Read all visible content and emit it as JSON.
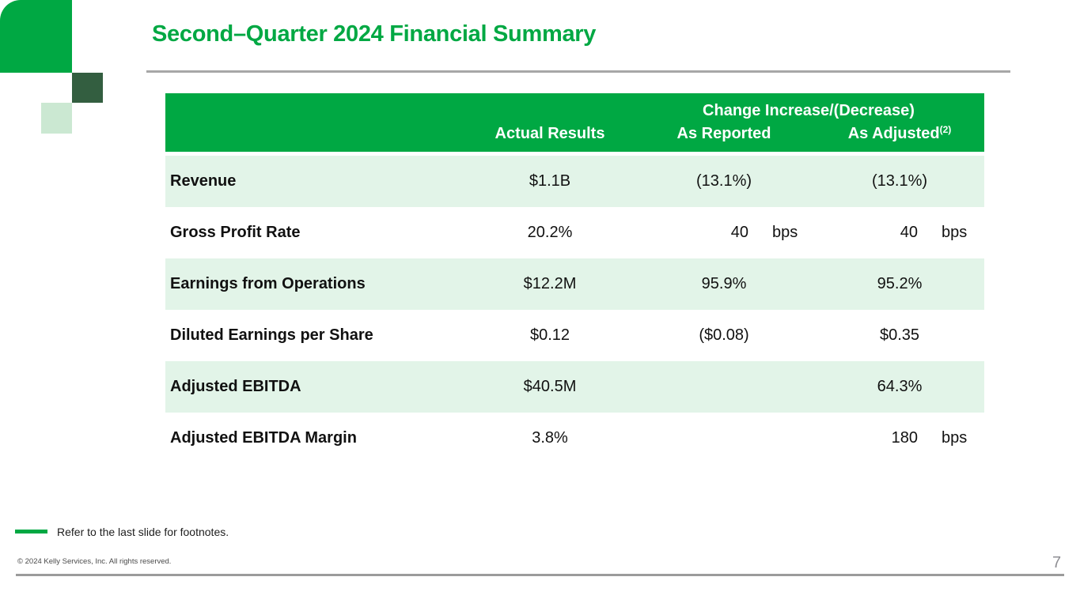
{
  "title": "Second–Quarter 2024 Financial Summary",
  "table": {
    "header": {
      "change_group": "Change Increase/(Decrease)",
      "col_actual": "Actual Results",
      "col_reported": "As Reported",
      "col_adjusted": "As Adjusted",
      "col_adjusted_sup": "(2)"
    },
    "rows": [
      {
        "label": "Revenue",
        "actual": "$1.1B",
        "reported": {
          "value": "(13.1%)",
          "unit": ""
        },
        "adjusted": {
          "value": "(13.1%)",
          "unit": ""
        }
      },
      {
        "label": "Gross Profit Rate",
        "actual": "20.2%",
        "reported": {
          "value": "40",
          "unit": "bps"
        },
        "adjusted": {
          "value": "40",
          "unit": "bps"
        }
      },
      {
        "label": "Earnings from Operations",
        "actual": "$12.2M",
        "reported": {
          "value": "95.9%",
          "unit": ""
        },
        "adjusted": {
          "value": "95.2%",
          "unit": ""
        }
      },
      {
        "label": "Diluted Earnings per Share",
        "actual": "$0.12",
        "reported": {
          "value": "($0.08)",
          "unit": ""
        },
        "adjusted": {
          "value": "$0.35",
          "unit": ""
        }
      },
      {
        "label": "Adjusted EBITDA",
        "actual": "$40.5M",
        "reported": {
          "value": "",
          "unit": ""
        },
        "adjusted": {
          "value": "64.3%",
          "unit": ""
        }
      },
      {
        "label": "Adjusted EBITDA Margin",
        "actual": "3.8%",
        "reported": {
          "value": "",
          "unit": ""
        },
        "adjusted": {
          "value": "180",
          "unit": "bps"
        }
      }
    ]
  },
  "footer": {
    "footnote": "Refer to the last slide for footnotes.",
    "copyright": "© 2024 Kelly Services, Inc. All rights reserved.",
    "page_number": "7"
  },
  "colors": {
    "brand_green": "#00A843",
    "dark_green": "#335E40",
    "pale_green": "#CBE8D2",
    "row_light_green": "#E2F4E8",
    "header_text": "#FFFFFF",
    "rule_gray": "#A7A7A7",
    "page_number_gray": "#8F8F94"
  }
}
